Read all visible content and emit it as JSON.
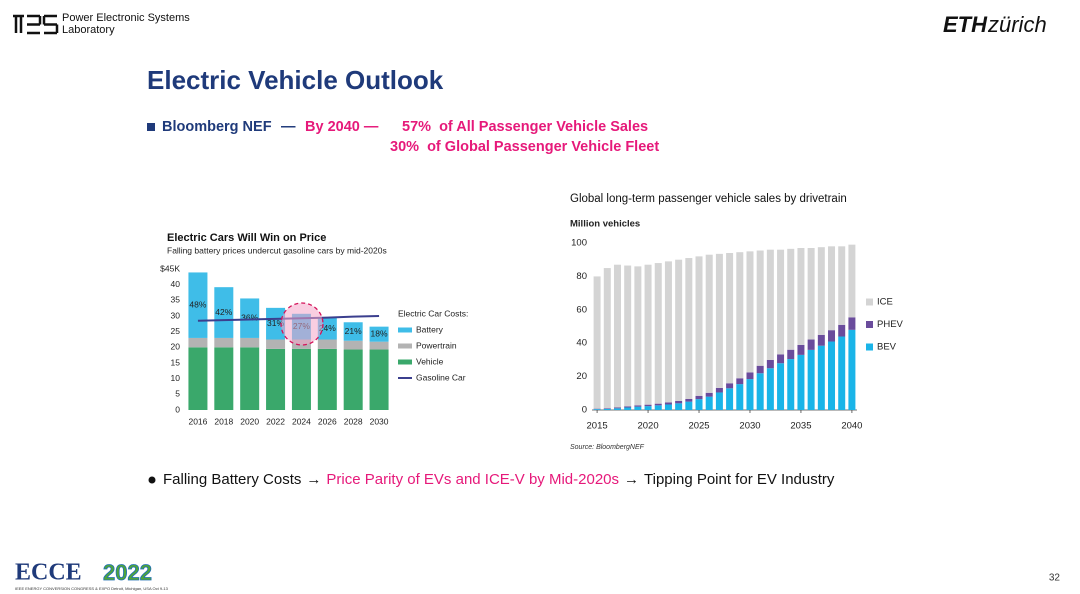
{
  "header": {
    "lab_lines": [
      "Power Electronic Systems",
      "Laboratory"
    ],
    "eth_bold": "ETH",
    "eth_rest": "zürich"
  },
  "title": "Electric Vehicle Outlook",
  "bullet1": {
    "source": "Bloomberg NEF",
    "dash": "—",
    "year": "By 2040 —",
    "line1": "57%  of All Passenger Vehicle Sales",
    "line2": "30%  of Global Passenger Vehicle Fleet"
  },
  "bullet2": {
    "parts": [
      "Falling Battery Costs",
      "→",
      "Price Parity of EVs and ICE-V by Mid-2020s",
      "→",
      "Tipping Point for EV Industry"
    ]
  },
  "footer": {
    "logo_name": "ECCE",
    "logo_year": "2022",
    "logo_caption": "IEEE ENERGY CONVERSION CONGRESS & EXPO  Detroit, Michigan, USA Oct 9-13",
    "page": "32"
  },
  "chart_data": [
    {
      "type": "bar",
      "stacked": true,
      "title": "Electric Cars Will Win on Price",
      "subtitle": "Falling battery prices undercut gasoline cars by mid-2020s",
      "categories": [
        "2016",
        "2018",
        "2020",
        "2022",
        "2024",
        "2026",
        "2028",
        "2030"
      ],
      "legend_title": "Electric Car Costs:",
      "series": [
        {
          "name": "Battery",
          "color": "#3fbde8",
          "values": [
            20.9,
            16.2,
            12.6,
            10.1,
            8.2,
            7.0,
            5.9,
            4.8
          ]
        },
        {
          "name": "Powertrain",
          "color": "#b3b3b3",
          "values": [
            3,
            3,
            3,
            3,
            3,
            3,
            2.8,
            2.5
          ]
        },
        {
          "name": "Vehicle",
          "color": "#3aa86b",
          "values": [
            20,
            20,
            20,
            19.5,
            19.5,
            19.5,
            19.3,
            19.3
          ]
        },
        {
          "name": "Gasoline Car",
          "type": "line",
          "color": "#3b3f8e",
          "values": [
            28.5,
            28.7,
            28.9,
            29.1,
            29.3,
            29.5,
            29.8,
            30
          ]
        }
      ],
      "battery_share_labels": [
        "48%",
        "42%",
        "36%",
        "31%",
        "27%",
        "24%",
        "21%",
        "18%"
      ],
      "ylim": [
        0,
        45
      ],
      "yticks": [
        0,
        5,
        10,
        15,
        20,
        25,
        30,
        35,
        40,
        {
          "value": 45,
          "label": "$45K"
        }
      ]
    },
    {
      "type": "bar",
      "stacked": true,
      "title": "Global long-term passenger vehicle sales by drivetrain",
      "y_label": "Million vehicles",
      "source": "Source: BloombergNEF",
      "x": [
        2015,
        2016,
        2017,
        2018,
        2019,
        2020,
        2021,
        2022,
        2023,
        2024,
        2025,
        2026,
        2027,
        2028,
        2029,
        2030,
        2031,
        2032,
        2033,
        2034,
        2035,
        2036,
        2037,
        2038,
        2039,
        2040
      ],
      "series": [
        {
          "name": "ICE",
          "color": "#d4d4d4",
          "values": [
            79.2,
            83.9,
            85.5,
            84.3,
            83.2,
            83.8,
            84.2,
            84.5,
            84.6,
            84.4,
            83.5,
            82.7,
            80.3,
            78,
            75.5,
            72.5,
            69,
            66,
            62.7,
            60.4,
            58,
            54.8,
            52.5,
            50.2,
            47,
            43.5
          ]
        },
        {
          "name": "PHEV",
          "color": "#6a4c9c",
          "values": [
            0.3,
            0.4,
            0.5,
            0.7,
            0.8,
            0.9,
            1,
            1.2,
            1.4,
            1.6,
            2,
            2.3,
            2.7,
            3,
            3.5,
            4,
            4.5,
            5,
            5.3,
            5.6,
            6,
            6.2,
            6.5,
            6.8,
            7,
            7.5
          ]
        },
        {
          "name": "BEV",
          "color": "#1ab4e8",
          "values": [
            0.5,
            0.7,
            1,
            1.5,
            2,
            2.3,
            2.8,
            3.3,
            4,
            5,
            6.5,
            8,
            10.5,
            13,
            15.5,
            18.5,
            22,
            25,
            28,
            30.5,
            33,
            36,
            38.5,
            41,
            44,
            48
          ]
        }
      ],
      "xlim": [
        2014.5,
        2040.5
      ],
      "xticks": [
        2015,
        2020,
        2025,
        2030,
        2035,
        2040
      ],
      "ylim": [
        0,
        100
      ],
      "yticks": [
        0,
        20,
        40,
        60,
        80,
        100
      ]
    }
  ]
}
